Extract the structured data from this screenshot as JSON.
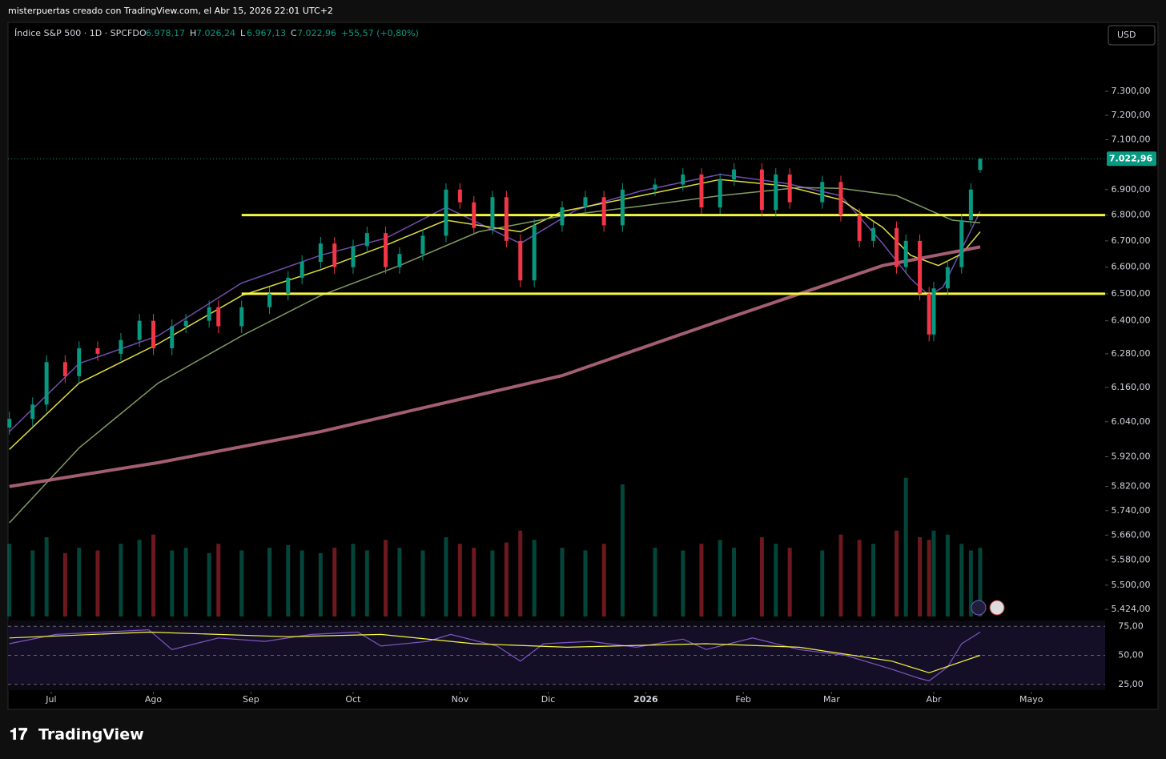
{
  "header": "misterpuertas creado con TradingView.com, el Abr 15, 2026 22:01 UTC+2",
  "footer_logo": "TradingView",
  "currency_button": "USD",
  "chart_data": {
    "type": "candlestick",
    "title": "Índice S&P 500 · 1D · SPCFD",
    "ohlc_legend": [
      {
        "key": "O",
        "value": "6.978,17"
      },
      {
        "key": "H",
        "value": "7.026,24"
      },
      {
        "key": "L",
        "value": "6.967,13"
      },
      {
        "key": "C",
        "value": "7.022,96"
      }
    ],
    "change": "+55,57 (+0,80%)",
    "log_scale": true,
    "xlim": [
      -0.3,
      235.9
    ],
    "ylim": [
      5402,
      7594
    ],
    "xticks": [
      {
        "value": 9,
        "label": "Jul"
      },
      {
        "value": 31,
        "label": "Ago"
      },
      {
        "value": 52,
        "label": "Sep"
      },
      {
        "value": 74,
        "label": "Oct"
      },
      {
        "value": 97,
        "label": "Nov"
      },
      {
        "value": 116,
        "label": "Dic"
      },
      {
        "value": 137,
        "label": "2026"
      },
      {
        "value": 158,
        "label": "Feb"
      },
      {
        "value": 177,
        "label": "Mar"
      },
      {
        "value": 199,
        "label": "Abr"
      },
      {
        "value": 220,
        "label": "Mayo"
      }
    ],
    "yticks": [
      {
        "value": 7300,
        "label": "7.300,00"
      },
      {
        "value": 7200,
        "label": "7.200,00"
      },
      {
        "value": 7100,
        "label": "7.100,00"
      },
      {
        "value": 6900,
        "label": "6.900,00"
      },
      {
        "value": 6800,
        "label": "6.800,00"
      },
      {
        "value": 6700,
        "label": "6.700,00"
      },
      {
        "value": 6600,
        "label": "6.600,00"
      },
      {
        "value": 6500,
        "label": "6.500,00"
      },
      {
        "value": 6400,
        "label": "6.400,00"
      },
      {
        "value": 6280,
        "label": "6.280,00"
      },
      {
        "value": 6160,
        "label": "6.160,00"
      },
      {
        "value": 6040,
        "label": "6.040,00"
      },
      {
        "value": 5920,
        "label": "5.920,00"
      },
      {
        "value": 5820,
        "label": "5.820,00"
      },
      {
        "value": 5740,
        "label": "5.740,00"
      },
      {
        "value": 5660,
        "label": "5.660,00"
      },
      {
        "value": 5580,
        "label": "5.580,00"
      },
      {
        "value": 5500,
        "label": "5.500,00"
      },
      {
        "value": 5424,
        "label": "5.424,00"
      }
    ],
    "last_price": {
      "value": 7022.96,
      "label": "7.022,96"
    },
    "up_color": "#089981",
    "down_color": "#f23645",
    "x": [
      0,
      5,
      8,
      12,
      15,
      19,
      24,
      28,
      31,
      35,
      38,
      43,
      45,
      50,
      56,
      60,
      63,
      67,
      70,
      74,
      77,
      81,
      84,
      89,
      94,
      97,
      100,
      104,
      107,
      110,
      113,
      119,
      124,
      128,
      132,
      139,
      145,
      149,
      153,
      156,
      162,
      165,
      168,
      175,
      179,
      183,
      186,
      191,
      193,
      196,
      198,
      199,
      202,
      205,
      207,
      209
    ],
    "open": [
      6020,
      6050,
      6100,
      6250,
      6200,
      6300,
      6280,
      6330,
      6400,
      6300,
      6380,
      6400,
      6450,
      6380,
      6450,
      6500,
      6560,
      6620,
      6690,
      6600,
      6680,
      6730,
      6600,
      6650,
      6720,
      6900,
      6850,
      6750,
      6870,
      6700,
      6550,
      6760,
      6830,
      6870,
      6760,
      6900,
      6920,
      6960,
      6830,
      6940,
      6980,
      6820,
      6960,
      6850,
      6930,
      6800,
      6700,
      6750,
      6600,
      6700,
      6500,
      6350,
      6520,
      6600,
      6780,
      6978.17
    ],
    "high": [
      6075,
      6125,
      6275,
      6275,
      6325,
      6325,
      6355,
      6425,
      6425,
      6405,
      6425,
      6475,
      6475,
      6475,
      6525,
      6585,
      6645,
      6715,
      6715,
      6705,
      6755,
      6755,
      6675,
      6745,
      6925,
      6925,
      6875,
      6895,
      6895,
      6725,
      6785,
      6855,
      6895,
      6895,
      6925,
      6945,
      6985,
      6985,
      6965,
      7005,
      7005,
      6985,
      6985,
      6955,
      6955,
      6825,
      6775,
      6775,
      6725,
      6725,
      6525,
      6545,
      6625,
      6805,
      6925,
      7026.24
    ],
    "low": [
      5995,
      6025,
      6075,
      6175,
      6175,
      6255,
      6255,
      6305,
      6275,
      6275,
      6355,
      6375,
      6355,
      6355,
      6425,
      6475,
      6535,
      6595,
      6575,
      6575,
      6655,
      6575,
      6575,
      6625,
      6695,
      6825,
      6725,
      6725,
      6675,
      6525,
      6525,
      6735,
      6805,
      6735,
      6735,
      6875,
      6895,
      6805,
      6805,
      6915,
      6795,
      6795,
      6825,
      6825,
      6775,
      6675,
      6675,
      6575,
      6575,
      6475,
      6325,
      6325,
      6495,
      6575,
      6755,
      6967.13
    ],
    "close": [
      6050,
      6100,
      6250,
      6200,
      6300,
      6280,
      6330,
      6400,
      6300,
      6380,
      6400,
      6450,
      6380,
      6450,
      6500,
      6560,
      6620,
      6690,
      6600,
      6680,
      6730,
      6600,
      6650,
      6720,
      6900,
      6850,
      6750,
      6870,
      6700,
      6550,
      6760,
      6830,
      6870,
      6760,
      6900,
      6920,
      6960,
      6830,
      6940,
      6980,
      6820,
      6960,
      6850,
      6930,
      6800,
      6700,
      6750,
      6600,
      6700,
      6500,
      6350,
      6520,
      6600,
      6780,
      6900,
      7022.96
    ],
    "volume": {
      "ylim": [
        0,
        100
      ],
      "values": [
        55,
        50,
        60,
        48,
        52,
        50,
        55,
        58,
        62,
        50,
        52,
        48,
        55,
        50,
        52,
        54,
        50,
        48,
        52,
        55,
        50,
        58,
        52,
        50,
        60,
        55,
        52,
        50,
        56,
        65,
        58,
        52,
        50,
        55,
        100,
        52,
        50,
        55,
        58,
        52,
        60,
        55,
        52,
        50,
        62,
        58,
        55,
        65,
        105,
        60,
        58,
        65,
        62,
        55,
        50,
        52
      ]
    },
    "hlines": {
      "start": 50,
      "color": "#f5f542",
      "values": [
        6800,
        6500
      ]
    },
    "moving_averages": [
      {
        "color": "#7e57c2",
        "x": [
          0,
          15,
          32,
          50,
          67,
          81,
          94,
          110,
          122,
          136,
          153,
          167,
          179,
          188,
          194,
          198,
          201,
          209
        ],
        "values": [
          6006,
          6245,
          6345,
          6540,
          6645,
          6710,
          6830,
          6690,
          6820,
          6895,
          6960,
          6925,
          6876,
          6690,
          6557,
          6493,
          6525,
          6814
        ]
      },
      {
        "color": "#f5f542",
        "x": [
          0,
          15,
          32,
          50,
          67,
          81,
          94,
          110,
          119,
          136,
          153,
          167,
          179,
          188,
          194,
          200,
          205,
          209
        ],
        "values": [
          5945,
          6175,
          6316,
          6493,
          6590,
          6683,
          6780,
          6735,
          6814,
          6876,
          6940,
          6915,
          6860,
          6752,
          6645,
          6606,
          6650,
          6735
        ]
      },
      {
        "color": "#8fae6e",
        "x": [
          0,
          15,
          32,
          50,
          67,
          84,
          101,
          119,
          136,
          153,
          170,
          179,
          191,
          203,
          209
        ],
        "values": [
          5700,
          5950,
          6175,
          6345,
          6493,
          6606,
          6735,
          6797,
          6835,
          6876,
          6908,
          6905,
          6876,
          6780,
          6770
        ]
      },
      {
        "color": "#b5687d",
        "x": [
          0,
          32,
          67,
          119,
          153,
          188,
          209
        ],
        "values": [
          5820,
          5900,
          6006,
          6202,
          6400,
          6606,
          6677
        ]
      }
    ],
    "rsi": {
      "ylim": [
        20,
        80
      ],
      "yticks": [
        {
          "value": 75,
          "label": "75,00"
        },
        {
          "value": 50,
          "label": "50,00"
        },
        {
          "value": 25,
          "label": "25,00"
        }
      ],
      "series": [
        {
          "color": "#7e57c2",
          "x": [
            0,
            10,
            20,
            30,
            35,
            45,
            55,
            65,
            75,
            80,
            90,
            95,
            105,
            110,
            115,
            125,
            135,
            145,
            150,
            160,
            170,
            180,
            190,
            196,
            198,
            202,
            205,
            209
          ],
          "values": [
            60,
            68,
            70,
            72,
            55,
            65,
            62,
            68,
            70,
            58,
            62,
            68,
            58,
            45,
            60,
            62,
            57,
            64,
            55,
            65,
            55,
            50,
            38,
            30,
            28,
            40,
            60,
            70
          ]
        },
        {
          "color": "#f5f542",
          "x": [
            0,
            30,
            60,
            80,
            100,
            120,
            150,
            170,
            190,
            198,
            209
          ],
          "values": [
            65,
            70,
            66,
            68,
            60,
            57,
            60,
            57,
            45,
            35,
            50
          ]
        }
      ]
    }
  }
}
